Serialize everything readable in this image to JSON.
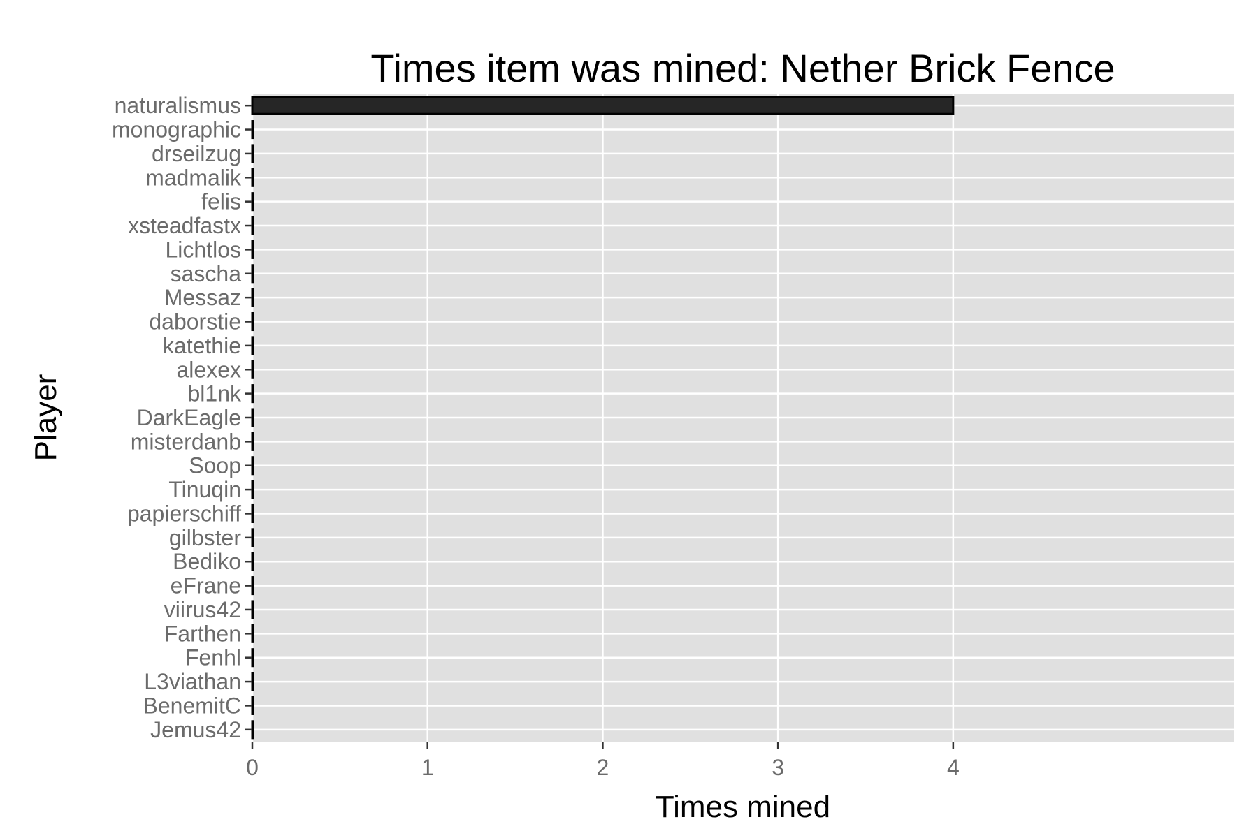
{
  "chart_data": {
    "type": "bar",
    "orientation": "horizontal",
    "title": "Times item was mined: Nether Brick Fence",
    "xlabel": "Times mined",
    "ylabel": "Player",
    "categories": [
      "naturalismus",
      "monographic",
      "drseilzug",
      "madmalik",
      "felis",
      "xsteadfastx",
      "Lichtlos",
      "sascha",
      "Messaz",
      "daborstie",
      "katethie",
      "alexex",
      "bl1nk",
      "DarkEagle",
      "misterdanb",
      "Soop",
      "Tinuqin",
      "papierschiff",
      "gilbster",
      "Bediko",
      "eFrane",
      "viirus42",
      "Farthen",
      "Fenhl",
      "L3viathan",
      "BenemitC",
      "Jemus42"
    ],
    "values": [
      4,
      0,
      0,
      0,
      0,
      0,
      0,
      0,
      0,
      0,
      0,
      0,
      0,
      0,
      0,
      0,
      0,
      0,
      0,
      0,
      0,
      0,
      0,
      0,
      0,
      0,
      0
    ],
    "xlim": [
      0,
      5.6
    ],
    "xticks": [
      0,
      1,
      2,
      3,
      4
    ],
    "grid": true,
    "colors": {
      "bar_fill": "#262626",
      "bar_stroke": "#000000",
      "panel": "#e0e0e0",
      "grid": "#ffffff",
      "tick": "#333333"
    }
  }
}
